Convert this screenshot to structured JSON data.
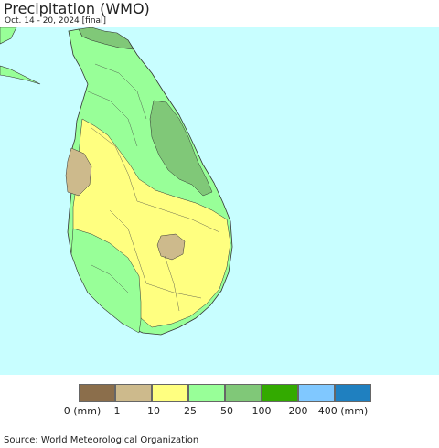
{
  "header": {
    "title": "Precipitation (WMO)",
    "subtitle": "Oct. 14 - 20, 2024 [final]"
  },
  "map": {
    "ocean_color": "#c8feff",
    "land_regions": [
      {
        "category": "50-100",
        "color": "#80c878"
      },
      {
        "category": "25-50",
        "color": "#98ff98"
      },
      {
        "category": "10-25",
        "color": "#ffff80"
      },
      {
        "category": "1-10",
        "color": "#cdba8c"
      }
    ]
  },
  "legend": {
    "colors": [
      "#8b6e4b",
      "#cdba8c",
      "#ffff80",
      "#98ff98",
      "#80c878",
      "#33aa00",
      "#80c8ff",
      "#1f80c0"
    ],
    "labels": [
      "0 (mm)",
      "1",
      "10",
      "25",
      "50",
      "100",
      "200",
      "400 (mm)"
    ]
  },
  "footer": {
    "source": "Source: World Meteorological Organization"
  }
}
